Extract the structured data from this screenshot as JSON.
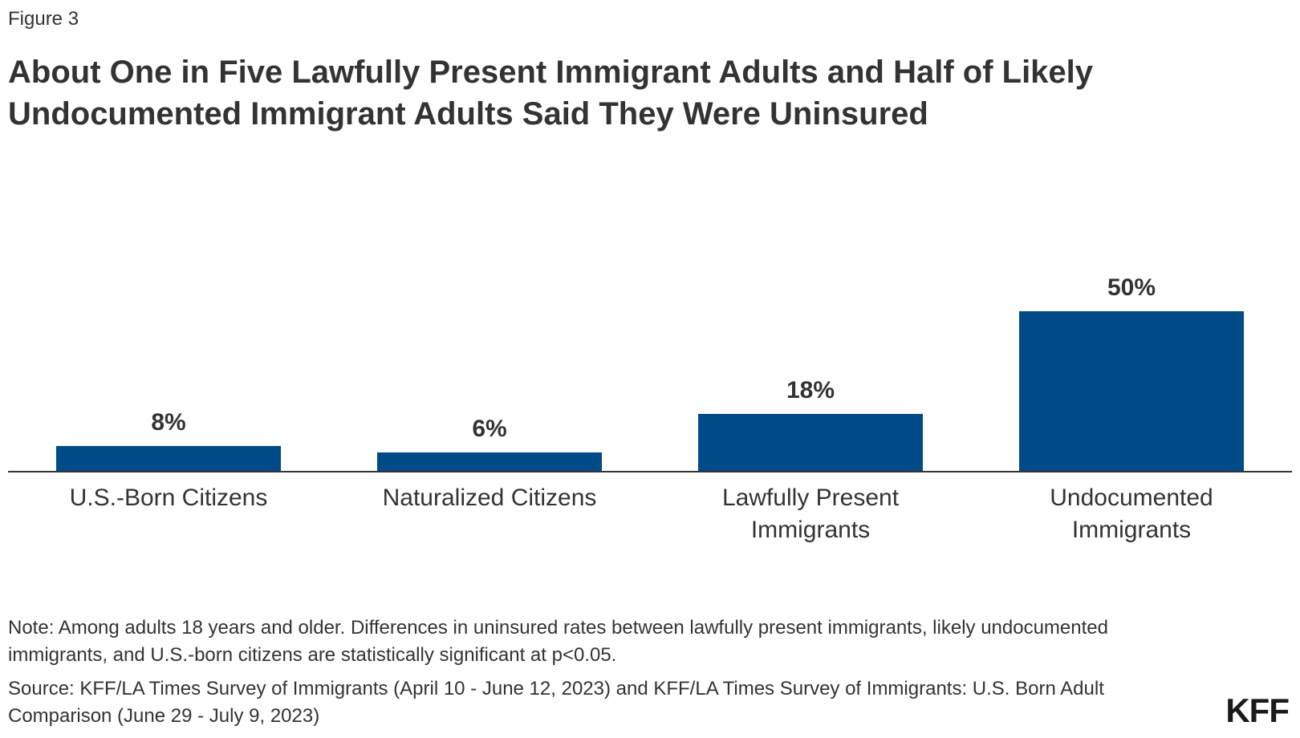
{
  "figure_label": "Figure 3",
  "title": "About One in Five Lawfully Present Immigrant Adults and Half of Likely Undocumented Immigrant Adults Said They Were Uninsured",
  "note": "Note: Among adults 18 years and older. Differences in uninsured rates between lawfully present immigrants, likely undocumented immigrants, and U.S.-born citizens are statistically significant at p<0.05.",
  "source": "Source: KFF/LA Times Survey of Immigrants (April 10 - June 12, 2023) and KFF/LA Times Survey of Immigrants: U.S. Born Adult Comparison (June 29 - July 9, 2023)",
  "logo": "KFF",
  "colors": {
    "bar": "#004a87",
    "axis": "#333333",
    "text": "#333333"
  },
  "chart_data": {
    "type": "bar",
    "title": "About One in Five Lawfully Present Immigrant Adults and Half of Likely Undocumented Immigrant Adults Said They Were Uninsured",
    "categories": [
      [
        "U.S.-Born Citizens"
      ],
      [
        "Naturalized Citizens"
      ],
      [
        "Lawfully Present",
        "Immigrants"
      ],
      [
        "Undocumented",
        "Immigrants"
      ]
    ],
    "values": [
      8,
      6,
      18,
      50
    ],
    "value_labels": [
      "8%",
      "6%",
      "18%",
      "50%"
    ],
    "xlabel": "",
    "ylabel": "",
    "ylim": [
      0,
      50
    ],
    "grid": false,
    "legend": false
  }
}
